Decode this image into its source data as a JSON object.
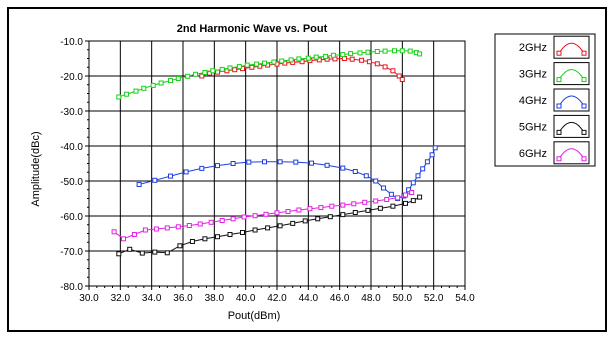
{
  "chart_data": {
    "type": "line",
    "title": "2nd Harmonic Wave vs. Pout",
    "xlabel": "Pout(dBm)",
    "ylabel": "Amplitude(dBc)",
    "xlim": [
      30,
      54
    ],
    "ylim": [
      -80,
      -10
    ],
    "x_ticks": [
      "30.0",
      "32.0",
      "34.0",
      "36.0",
      "38.0",
      "40.0",
      "42.0",
      "44.0",
      "46.0",
      "48.0",
      "50.0",
      "52.0",
      "54.0"
    ],
    "y_ticks": [
      "-10.0",
      "-20.0",
      "-30.0",
      "-40.0",
      "-50.0",
      "-60.0",
      "-70.0",
      "-80.0"
    ],
    "x_tick_values": [
      30,
      32,
      34,
      36,
      38,
      40,
      42,
      44,
      46,
      48,
      50,
      52,
      54
    ],
    "y_tick_values": [
      -10,
      -20,
      -30,
      -40,
      -50,
      -60,
      -70,
      -80
    ],
    "grid": true,
    "legend_position": "right",
    "series": [
      {
        "name": "2GHz",
        "color": "#e8141e",
        "x": [
          37.2,
          37.7,
          38.2,
          38.8,
          39.3,
          39.8,
          40.4,
          40.9,
          41.4,
          42.0,
          42.5,
          43.0,
          43.6,
          44.1,
          44.7,
          45.2,
          45.7,
          46.3,
          46.8,
          47.4,
          47.9,
          48.4,
          48.9,
          49.4,
          49.8,
          50.0
        ],
        "y": [
          -20.0,
          -19.2,
          -18.9,
          -18.5,
          -18.2,
          -17.9,
          -17.5,
          -17.2,
          -16.9,
          -16.6,
          -16.3,
          -16.1,
          -15.9,
          -15.6,
          -15.4,
          -15.2,
          -15.1,
          -15.0,
          -15.2,
          -15.5,
          -15.9,
          -16.5,
          -17.4,
          -18.5,
          -20.0,
          -21.0
        ]
      },
      {
        "name": "3GHz",
        "color": "#17d017",
        "x": [
          31.9,
          32.4,
          33.0,
          33.5,
          34.1,
          34.6,
          35.2,
          35.7,
          36.3,
          36.8,
          37.4,
          37.9,
          38.5,
          39.0,
          39.6,
          40.1,
          40.7,
          41.2,
          41.8,
          42.3,
          42.9,
          43.4,
          44.0,
          44.5,
          45.1,
          45.6,
          46.2,
          46.7,
          47.3,
          47.8,
          48.4,
          48.9,
          49.5,
          50.0,
          50.5,
          50.9,
          51.1
        ],
        "y": [
          -26.0,
          -25.2,
          -24.3,
          -23.5,
          -22.7,
          -22.0,
          -21.3,
          -20.7,
          -20.1,
          -19.5,
          -19.0,
          -18.5,
          -18.1,
          -17.7,
          -17.3,
          -16.9,
          -16.6,
          -16.3,
          -16.0,
          -15.7,
          -15.4,
          -15.1,
          -14.9,
          -14.6,
          -14.4,
          -14.1,
          -13.9,
          -13.6,
          -13.4,
          -13.2,
          -13.0,
          -12.9,
          -12.8,
          -12.8,
          -12.9,
          -13.3,
          -13.7
        ]
      },
      {
        "name": "4GHz",
        "color": "#1f3fe0",
        "x": [
          33.2,
          34.2,
          35.2,
          36.2,
          37.2,
          38.2,
          39.2,
          40.2,
          41.2,
          42.2,
          43.2,
          44.2,
          45.2,
          46.2,
          47.0,
          47.7,
          48.3,
          48.8,
          49.3,
          49.7,
          50.1,
          50.4,
          50.7,
          51.0,
          51.3,
          51.6,
          51.9,
          52.1
        ],
        "y": [
          -51.0,
          -49.8,
          -48.6,
          -47.4,
          -46.4,
          -45.6,
          -45.0,
          -44.6,
          -44.5,
          -44.5,
          -44.6,
          -44.9,
          -45.5,
          -46.3,
          -47.3,
          -48.5,
          -50.0,
          -52.0,
          -53.8,
          -55.0,
          -54.3,
          -52.5,
          -50.5,
          -48.5,
          -46.5,
          -44.5,
          -42.5,
          -40.5
        ]
      },
      {
        "name": "5GHz",
        "color": "#111111",
        "x": [
          31.9,
          32.6,
          33.4,
          34.2,
          35.0,
          35.8,
          36.6,
          37.4,
          38.2,
          39.0,
          39.8,
          40.6,
          41.4,
          42.2,
          43.0,
          43.8,
          44.6,
          45.4,
          46.2,
          47.0,
          47.8,
          48.6,
          49.4,
          50.2,
          50.7,
          51.1
        ],
        "y": [
          -70.8,
          -69.5,
          -70.6,
          -70.3,
          -70.5,
          -68.5,
          -67.3,
          -66.5,
          -65.9,
          -65.3,
          -64.7,
          -64.0,
          -63.4,
          -62.8,
          -62.1,
          -61.4,
          -60.8,
          -60.2,
          -59.6,
          -59.0,
          -58.4,
          -57.8,
          -57.2,
          -56.4,
          -55.6,
          -54.6
        ]
      },
      {
        "name": "6GHz",
        "color": "#e51ee5",
        "x": [
          31.6,
          32.2,
          32.9,
          33.6,
          34.3,
          35.0,
          35.7,
          36.4,
          37.1,
          37.8,
          38.5,
          39.2,
          39.9,
          40.6,
          41.3,
          42.0,
          42.7,
          43.4,
          44.1,
          44.8,
          45.5,
          46.2,
          46.9,
          47.6,
          48.3,
          49.0,
          49.7,
          50.2,
          50.6
        ],
        "y": [
          -64.5,
          -66.5,
          -65.3,
          -64.0,
          -63.7,
          -63.4,
          -63.1,
          -62.7,
          -62.3,
          -61.8,
          -61.3,
          -60.8,
          -60.3,
          -59.9,
          -59.5,
          -59.1,
          -58.7,
          -58.3,
          -57.9,
          -57.6,
          -57.2,
          -56.9,
          -56.5,
          -56.1,
          -55.7,
          -55.3,
          -54.8,
          -54.0,
          -53.3
        ]
      }
    ]
  }
}
